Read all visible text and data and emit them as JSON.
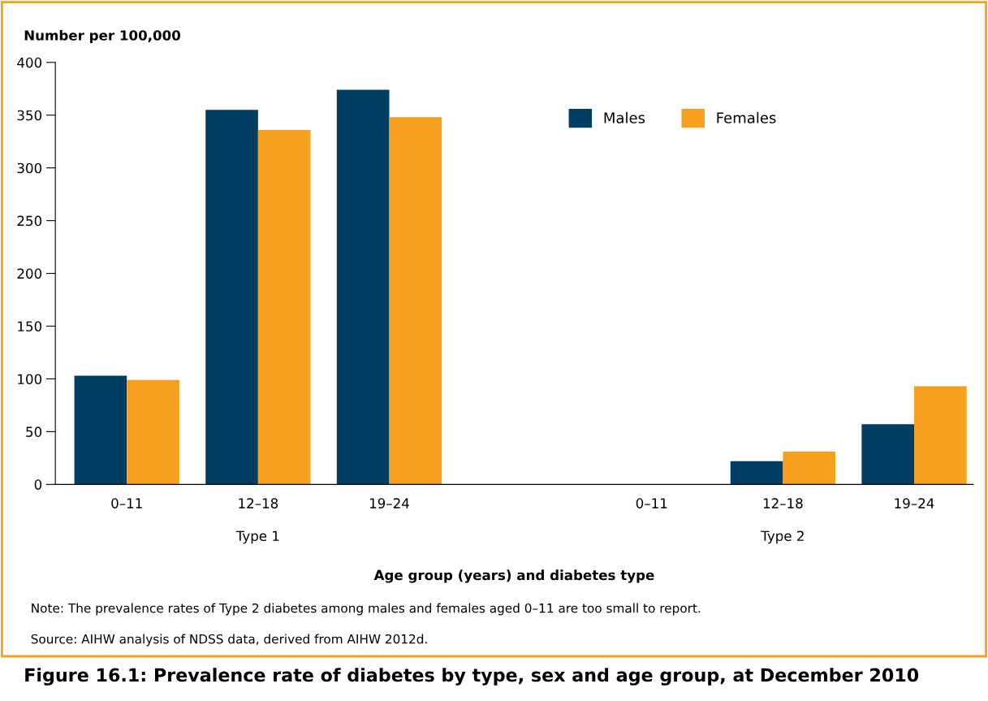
{
  "chart_data": {
    "type": "bar",
    "title": "Figure 16.1: Prevalence rate of diabetes by type, sex and age group, at December 2010",
    "ylabel": "Number per 100,000",
    "xlabel": "Age group (years) and diabetes type",
    "categories": [
      "0–11",
      "12–18",
      "19–24",
      null,
      "0–11",
      "12–18",
      "19–24"
    ],
    "series": [
      {
        "name": "Males",
        "color": "#003f63",
        "values": [
          103,
          355,
          374,
          null,
          null,
          22,
          57
        ]
      },
      {
        "name": "Females",
        "color": "#f5a01f",
        "values": [
          99,
          336,
          348,
          null,
          null,
          31,
          93
        ]
      }
    ],
    "annotations": [
      "Type 1",
      "Type 2",
      "Note: The prevalence rates of Type 2 diabetes among males and females aged 0–11 are too small to report.",
      "Source: AIHW analysis of NDSS data, derived from AIHW 2012d."
    ],
    "ylim": [
      0,
      400
    ],
    "yticks": [
      0,
      50,
      100,
      150,
      200,
      250,
      300,
      350,
      400
    ],
    "grid": false,
    "legend": "top right"
  }
}
